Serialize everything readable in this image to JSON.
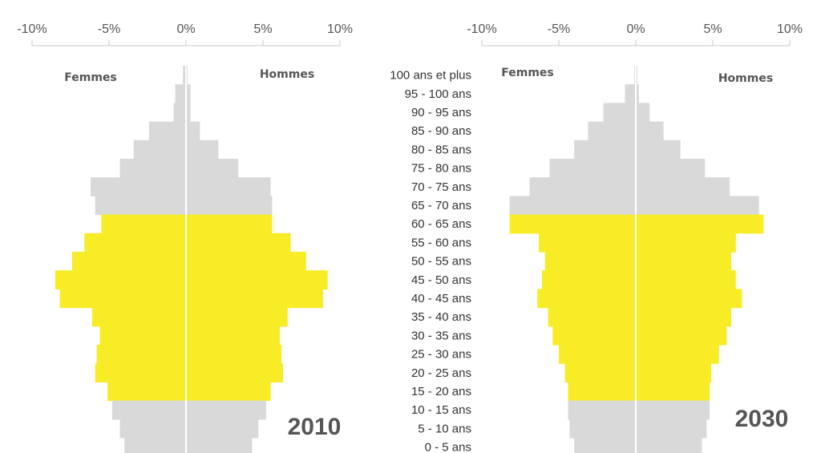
{
  "chart_data": {
    "type": "bar",
    "orientation": "horizontal",
    "age_groups": [
      "100 ans et plus",
      "95 - 100 ans",
      "90 - 95 ans",
      "85 - 90 ans",
      "80 - 85 ans",
      "75 - 80 ans",
      "70 - 75 ans",
      "65 - 70 ans",
      "60 - 65 ans",
      "55 - 60 ans",
      "50 - 55 ans",
      "45 - 50 ans",
      "40 - 45 ans",
      "35 - 40 ans",
      "30 - 35 ans",
      "25 - 30 ans",
      "20 - 25 ans",
      "15 - 20 ans",
      "10 - 15 ans",
      "5 - 10 ans",
      "0 - 5 ans"
    ],
    "x_ticks": [
      "-10%",
      "-5%",
      "0%",
      "5%",
      "10%"
    ],
    "xlim": [
      -10,
      10
    ],
    "colors": {
      "highlight": "#f7ec26",
      "base": "#d9d9d9",
      "axis": "#c8c8c8",
      "zero_line": "#ffffff"
    },
    "highlight_groups": [
      "60 - 65 ans",
      "55 - 60 ans",
      "50 - 55 ans",
      "45 - 50 ans",
      "40 - 45 ans",
      "35 - 40 ans",
      "30 - 35 ans",
      "25 - 30 ans",
      "20 - 25 ans",
      "15 - 20 ans"
    ],
    "panels": [
      {
        "year": "2010",
        "femmes_label": "Femmes",
        "hommes_label": "Hommes",
        "femmes": [
          0.2,
          0.7,
          0.8,
          2.4,
          3.4,
          4.3,
          6.2,
          5.9,
          5.5,
          6.6,
          7.4,
          8.5,
          8.2,
          6.1,
          5.6,
          5.8,
          5.9,
          5.1,
          4.8,
          4.3,
          4.0
        ],
        "hommes": [
          0.1,
          0.3,
          0.3,
          0.9,
          2.1,
          3.4,
          5.5,
          5.6,
          5.6,
          6.8,
          7.8,
          9.2,
          8.9,
          6.6,
          6.1,
          6.2,
          6.3,
          5.5,
          5.2,
          4.7,
          4.3
        ]
      },
      {
        "year": "2030",
        "femmes_label": "Femmes",
        "hommes_label": "Hommes",
        "femmes": [
          0.1,
          0.7,
          2.1,
          3.1,
          4.0,
          5.6,
          6.9,
          8.2,
          8.2,
          6.3,
          5.9,
          6.1,
          6.4,
          5.7,
          5.4,
          5.0,
          4.6,
          4.4,
          4.4,
          4.3,
          4.0
        ],
        "hommes": [
          0.1,
          0.2,
          0.9,
          1.8,
          2.9,
          4.5,
          6.1,
          8.0,
          8.3,
          6.5,
          6.2,
          6.5,
          6.9,
          6.2,
          5.9,
          5.4,
          4.9,
          4.8,
          4.8,
          4.6,
          4.3
        ]
      }
    ]
  }
}
